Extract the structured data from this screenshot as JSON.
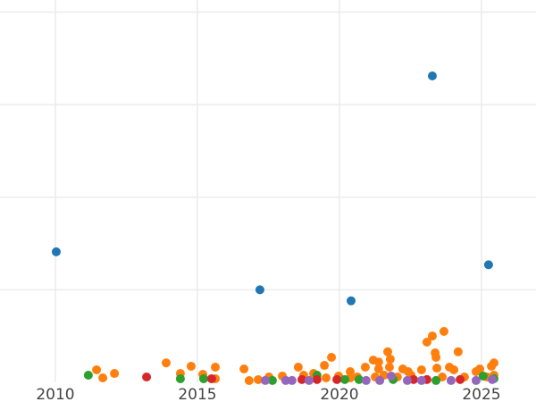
{
  "chart_data": {
    "type": "scatter",
    "title": "",
    "xlabel": "",
    "ylabel": "",
    "xlim": [
      2008.05,
      2026.92
    ],
    "ylim": [
      0,
      4.13
    ],
    "x_ticks": [
      2010,
      2015,
      2020,
      2025
    ],
    "x_tick_labels": [
      "2010",
      "2015",
      "2020",
      "2025"
    ],
    "y_gridlines": [
      1,
      2,
      3,
      4
    ],
    "grid": true,
    "legend": "none",
    "series": [
      {
        "color": "#1f77b4",
        "points": [
          [
            2010.03,
            1.41
          ],
          [
            2023.27,
            3.31
          ],
          [
            2017.2,
            1.0
          ],
          [
            2020.41,
            0.88
          ],
          [
            2025.25,
            1.27
          ]
        ]
      },
      {
        "color": "#ff7f0e",
        "points": [
          [
            2011.45,
            0.135
          ],
          [
            2011.67,
            0.048
          ],
          [
            2012.08,
            0.096
          ],
          [
            2013.9,
            0.21
          ],
          [
            2014.4,
            0.096
          ],
          [
            2014.78,
            0.174
          ],
          [
            2015.19,
            0.087
          ],
          [
            2015.63,
            0.164
          ],
          [
            2015.63,
            0.039
          ],
          [
            2016.64,
            0.145
          ],
          [
            2016.82,
            0.019
          ],
          [
            2017.14,
            0.029
          ],
          [
            2017.52,
            0.058
          ],
          [
            2017.99,
            0.068
          ],
          [
            2018.55,
            0.164
          ],
          [
            2018.74,
            0.077
          ],
          [
            2019.09,
            0.096
          ],
          [
            2019.47,
            0.183
          ],
          [
            2019.72,
            0.27
          ],
          [
            2019.97,
            0.068
          ],
          [
            2020.38,
            0.116
          ],
          [
            2020.38,
            0.048
          ],
          [
            2020.91,
            0.164
          ],
          [
            2021.19,
            0.24
          ],
          [
            2021.38,
            0.22
          ],
          [
            2021.38,
            0.145
          ],
          [
            2021.7,
            0.33
          ],
          [
            2021.79,
            0.25
          ],
          [
            2021.76,
            0.164
          ],
          [
            2022.23,
            0.145
          ],
          [
            2022.42,
            0.116
          ],
          [
            2022.89,
            0.135
          ],
          [
            2023.08,
            0.434
          ],
          [
            2023.27,
            0.5
          ],
          [
            2023.37,
            0.318
          ],
          [
            2023.4,
            0.27
          ],
          [
            2023.43,
            0.154
          ],
          [
            2023.68,
            0.55
          ],
          [
            2023.87,
            0.164
          ],
          [
            2024.03,
            0.135
          ],
          [
            2024.18,
            0.33
          ],
          [
            2024.81,
            0.116
          ],
          [
            2024.94,
            0.145
          ],
          [
            2025.35,
            0.174
          ],
          [
            2025.44,
            0.21
          ],
          [
            2025.44,
            0.077
          ],
          [
            2020.63,
            0.058
          ],
          [
            2021.57,
            0.077
          ],
          [
            2022.52,
            0.077
          ],
          [
            2024.4,
            0.058
          ],
          [
            2025.19,
            0.058
          ],
          [
            2019.53,
            0.048
          ],
          [
            2021.26,
            0.058
          ],
          [
            2022.04,
            0.058
          ],
          [
            2023.62,
            0.058
          ]
        ]
      },
      {
        "color": "#2ca02c",
        "points": [
          [
            2011.16,
            0.077
          ],
          [
            2014.4,
            0.039
          ],
          [
            2015.22,
            0.039
          ],
          [
            2017.64,
            0.02
          ],
          [
            2019.21,
            0.077
          ],
          [
            2020.19,
            0.03
          ],
          [
            2020.69,
            0.03
          ],
          [
            2021.89,
            0.03
          ],
          [
            2023.4,
            0.02
          ],
          [
            2025.06,
            0.068
          ],
          [
            2025.44,
            0.04
          ]
        ]
      },
      {
        "color": "#d62728",
        "points": [
          [
            2013.21,
            0.058
          ],
          [
            2015.5,
            0.039
          ],
          [
            2018.68,
            0.03
          ],
          [
            2019.21,
            0.03
          ],
          [
            2019.91,
            0.03
          ],
          [
            2022.61,
            0.03
          ],
          [
            2023.08,
            0.03
          ],
          [
            2024.25,
            0.03
          ]
        ]
      },
      {
        "color": "#9467bd",
        "points": [
          [
            2017.39,
            0.02
          ],
          [
            2018.11,
            0.02
          ],
          [
            2018.33,
            0.02
          ],
          [
            2018.93,
            0.02
          ],
          [
            2020.94,
            0.02
          ],
          [
            2021.42,
            0.02
          ],
          [
            2021.82,
            0.068
          ],
          [
            2022.39,
            0.02
          ],
          [
            2022.89,
            0.02
          ],
          [
            2023.93,
            0.02
          ],
          [
            2024.81,
            0.02
          ],
          [
            2025.38,
            0.03
          ]
        ]
      }
    ]
  }
}
